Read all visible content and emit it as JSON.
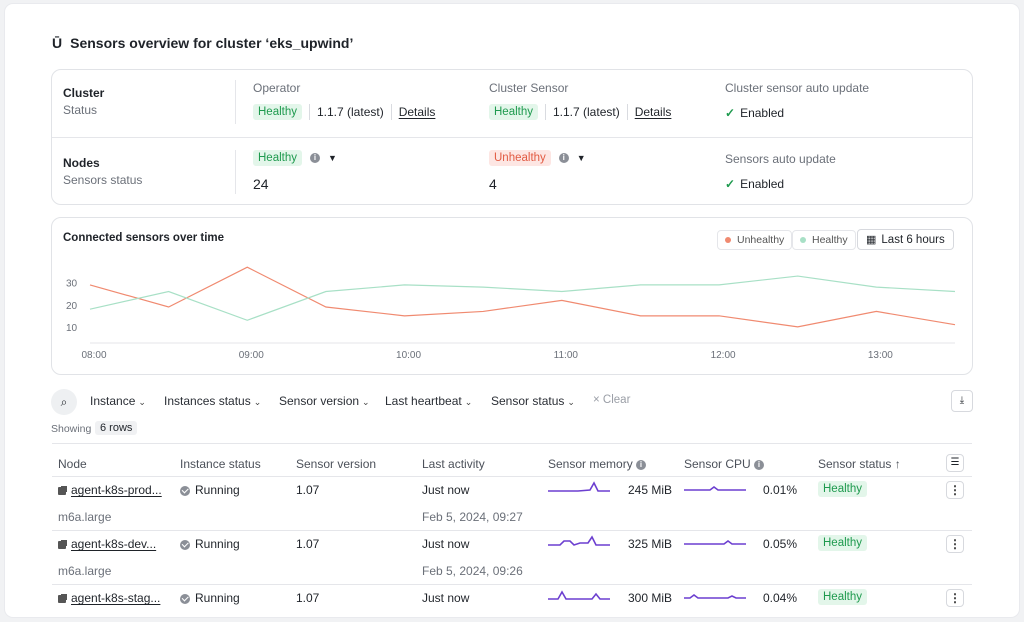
{
  "title": "Sensors overview for cluster ‘eks_upwind’",
  "cluster": {
    "label": "Cluster",
    "sub": "Status",
    "operator": {
      "label": "Operator",
      "status": "Healthy",
      "version": "1.1.7 (latest)",
      "details": "Details"
    },
    "sensor": {
      "label": "Cluster Sensor",
      "status": "Healthy",
      "version": "1.1.7 (latest)",
      "details": "Details"
    },
    "auto": {
      "label": "Cluster sensor auto update",
      "value": "Enabled"
    }
  },
  "nodes": {
    "label": "Nodes",
    "sub": "Sensors status",
    "healthy": {
      "status": "Healthy",
      "count": "24"
    },
    "unhealthy": {
      "status": "Unhealthy",
      "count": "4"
    },
    "auto": {
      "label": "Sensors auto update",
      "value": "Enabled"
    }
  },
  "chart_card": {
    "title": "Connected sensors over time",
    "legend_unhealthy": "Unhealthy",
    "legend_healthy": "Healthy",
    "range": "Last 6 hours"
  },
  "chart_data": {
    "type": "line",
    "x": [
      "08:00",
      "08:30",
      "09:00",
      "09:30",
      "10:00",
      "10:30",
      "11:00",
      "11:30",
      "12:00",
      "12:30",
      "13:00",
      "13:15"
    ],
    "x_ticks": [
      "08:00",
      "09:00",
      "10:00",
      "11:00",
      "12:00",
      "13:00"
    ],
    "y_ticks": [
      "30",
      "20",
      "10"
    ],
    "ylim": [
      0,
      38
    ],
    "series": [
      {
        "name": "Unhealthy",
        "color": "#f08a70",
        "values": [
          29,
          19,
          37,
          19,
          15,
          17,
          22,
          15,
          15,
          10,
          17,
          11
        ]
      },
      {
        "name": "Healthy",
        "color": "#a8e0c6",
        "values": [
          18,
          26,
          13,
          26,
          29,
          28,
          26,
          29,
          29,
          33,
          28,
          26
        ]
      }
    ]
  },
  "filters": {
    "items": [
      "Instance",
      "Instances status",
      "Sensor version",
      "Last heartbeat",
      "Sensor status"
    ],
    "clear": "Clear",
    "showing": "Showing",
    "rows": "6 rows"
  },
  "table": {
    "headers": [
      "Node",
      "Instance status",
      "Sensor version",
      "Last activity",
      "Sensor memory",
      "Sensor CPU",
      "Sensor status ↑"
    ],
    "rows": [
      {
        "node": "agent-k8s-prod...",
        "type": "m6a.large",
        "status": "Running",
        "version": "1.07",
        "activity": "Just now",
        "activity_sub": "Feb 5, 2024, 09:27",
        "memory": "245 MiB",
        "cpu": "0.01%",
        "sensor_status": "Healthy"
      },
      {
        "node": "agent-k8s-dev...",
        "type": "m6a.large",
        "status": "Running",
        "version": "1.07",
        "activity": "Just now",
        "activity_sub": "Feb 5, 2024, 09:26",
        "memory": "325 MiB",
        "cpu": "0.05%",
        "sensor_status": "Healthy"
      },
      {
        "node": "agent-k8s-stag...",
        "type": "",
        "status": "Running",
        "version": "1.07",
        "activity": "Just now",
        "activity_sub": "",
        "memory": "300 MiB",
        "cpu": "0.04%",
        "sensor_status": "Healthy"
      }
    ]
  }
}
